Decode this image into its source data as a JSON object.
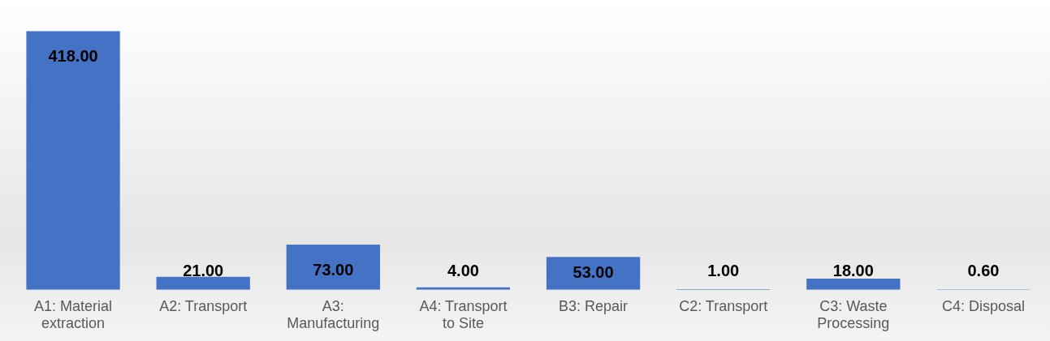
{
  "chart_data": {
    "type": "bar",
    "categories": [
      "A1: Material extraction",
      "A2: Transport",
      "A3: Manufacturing",
      "A4: Transport to Site",
      "B3: Repair",
      "C2: Transport",
      "C3: Waste Processing",
      "C4: Disposal"
    ],
    "values": [
      418,
      21,
      73,
      4,
      53,
      1,
      18,
      0.6
    ],
    "color": "#4472c4",
    "value_labels": [
      "418.00",
      "21.00",
      "73.00",
      "4.00",
      "53.00",
      "1.00",
      "18.00",
      "0.60"
    ],
    "grid": false,
    "legend": false
  }
}
